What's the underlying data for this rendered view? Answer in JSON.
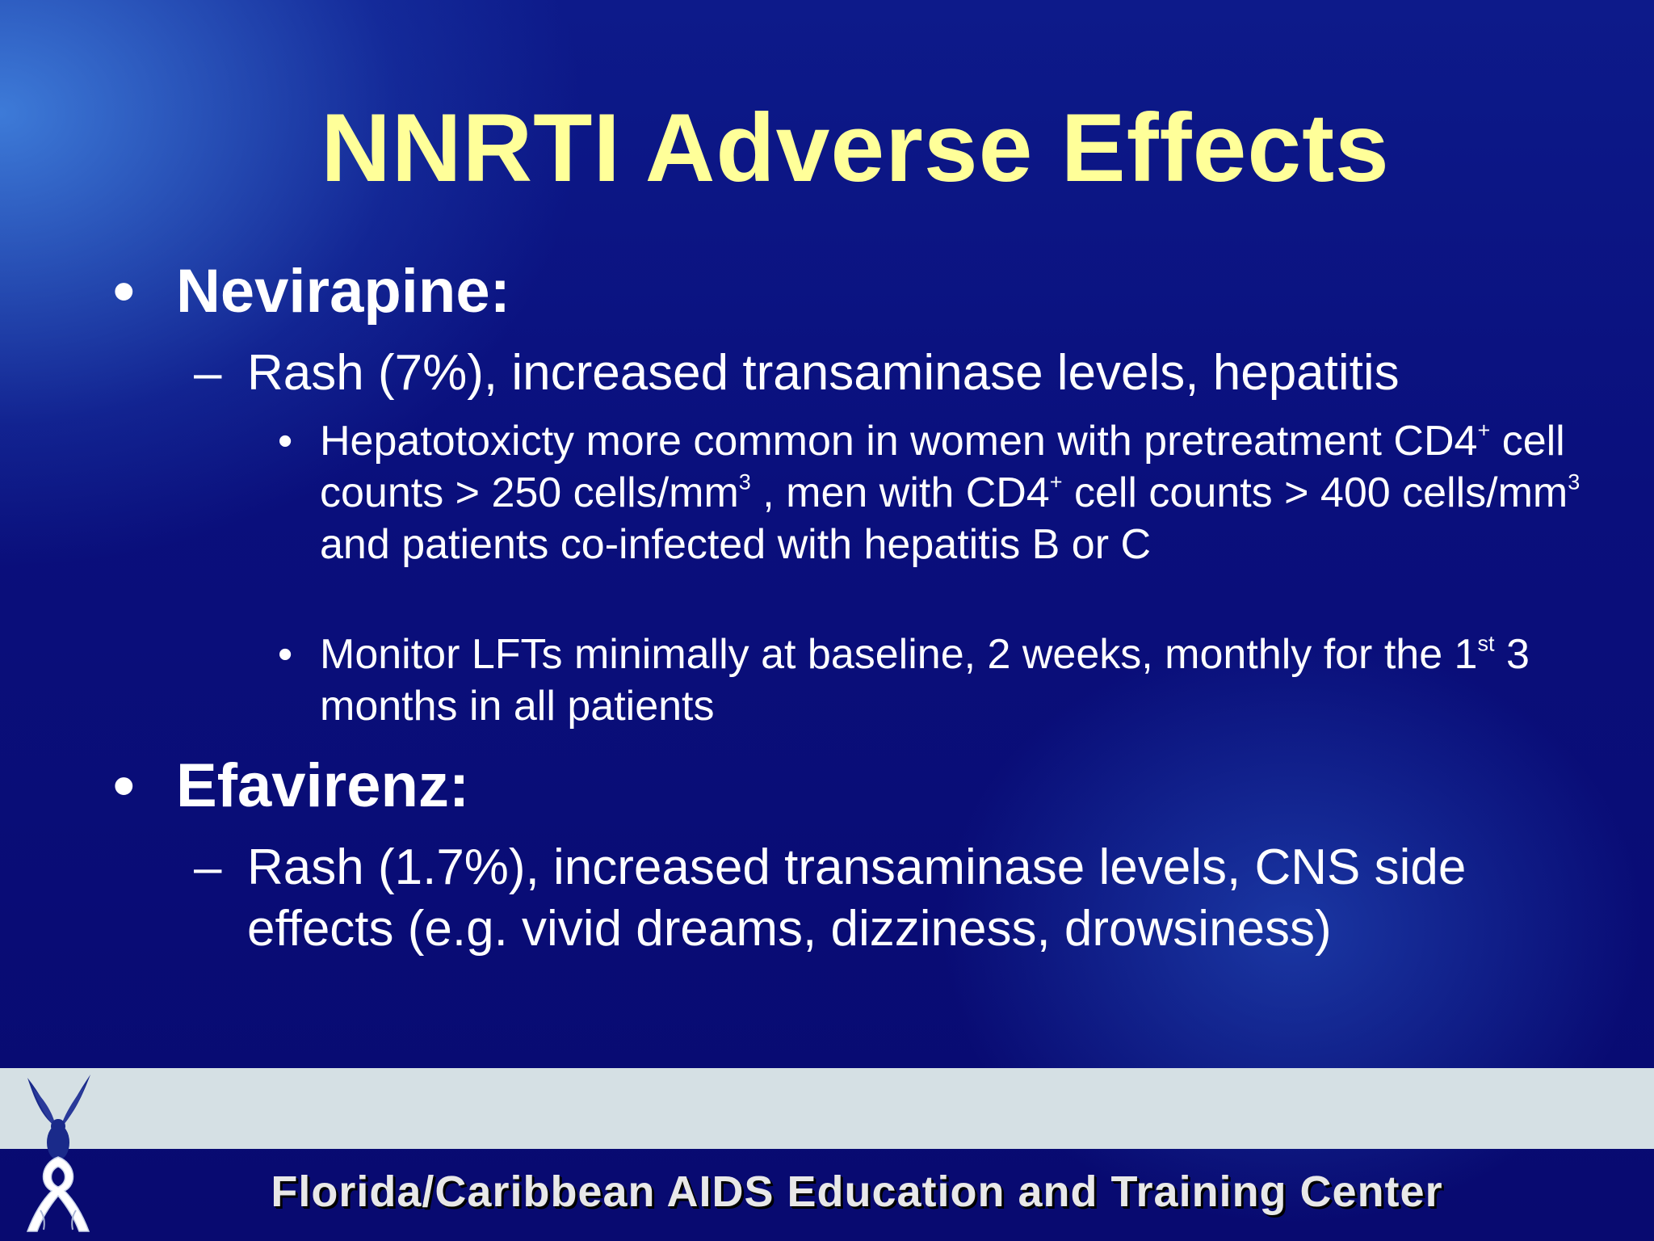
{
  "slide": {
    "title": "NNRTI Adverse Effects",
    "bullet_symbol": "•",
    "dash_symbol": "–",
    "items": [
      {
        "heading": "Nevirapine:",
        "sub": {
          "text": "Rash (7%), increased transaminase levels, hepatitis",
          "points": [
            {
              "part1": "Hepatotoxicty more common in women with pretreatment CD4",
              "sup1": "+",
              "part2": " cell counts > 250 cells/mm",
              "sup2": "3",
              "part3": " , men with CD4",
              "sup3": "+",
              "part4": " cell counts > 400 cells/mm",
              "sup4": "3",
              "part5": " and patients co-infected with hepatitis B or C"
            },
            {
              "part1": "Monitor LFTs minimally at baseline, 2 weeks, monthly for the 1",
              "sup1": "st",
              "part2": " 3 months in all patients"
            }
          ]
        }
      },
      {
        "heading": "Efavirenz:",
        "sub": {
          "text": "Rash (1.7%), increased transaminase levels, CNS side effects (e.g. vivid dreams, dizziness, drowsiness)"
        }
      }
    ]
  },
  "footer": {
    "organization": "Florida/Caribbean AIDS Education and Training Center",
    "logo_icon": "bird-ribbon-logo-icon",
    "band_color": "#d5e0e4"
  },
  "colors": {
    "title": "#ffff99",
    "text": "#ffffff",
    "background": "#0a0c72"
  }
}
